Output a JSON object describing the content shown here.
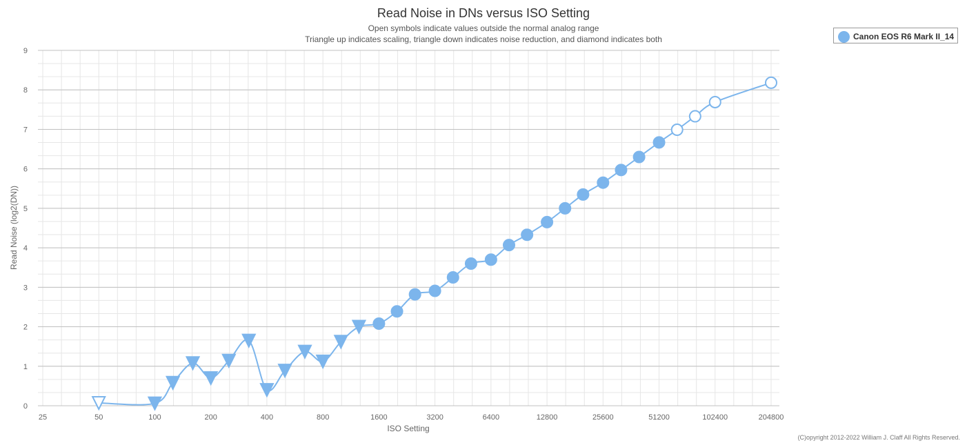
{
  "chart_data": {
    "type": "line",
    "title": "Read Noise in DNs versus ISO Setting",
    "subtitle_lines": [
      "Open symbols indicate values outside the normal analog range",
      "Triangle up indicates scaling, triangle down indicates noise reduction, and diamond indicates both"
    ],
    "xlabel": "ISO Setting",
    "ylabel": "Read Noise (log2(DN))",
    "x_scale": "log2",
    "x_ticks": [
      25,
      50,
      100,
      200,
      400,
      800,
      1600,
      3200,
      6400,
      12800,
      25600,
      51200,
      102400,
      204800
    ],
    "x_tick_labels": [
      "25",
      "50",
      "100",
      "200",
      "400",
      "800",
      "1600",
      "3200",
      "6400",
      "12800",
      "25600",
      "51200",
      "102400",
      "204800"
    ],
    "y_ticks": [
      0,
      1,
      2,
      3,
      4,
      5,
      6,
      7,
      8,
      9
    ],
    "xlim": [
      25,
      204800
    ],
    "ylim": [
      0,
      9
    ],
    "grid": true,
    "legend_position": "top-right",
    "series": [
      {
        "name": "Canon EOS R6 Mark II_14",
        "color": "#7cb5ec",
        "points": [
          {
            "x": 50,
            "y": 0.07,
            "marker": "triangle-down",
            "filled": false
          },
          {
            "x": 100,
            "y": 0.06,
            "marker": "triangle-down",
            "filled": true
          },
          {
            "x": 125,
            "y": 0.58,
            "marker": "triangle-down",
            "filled": true
          },
          {
            "x": 160,
            "y": 1.08,
            "marker": "triangle-down",
            "filled": true
          },
          {
            "x": 200,
            "y": 0.7,
            "marker": "triangle-down",
            "filled": true
          },
          {
            "x": 250,
            "y": 1.14,
            "marker": "triangle-down",
            "filled": true
          },
          {
            "x": 320,
            "y": 1.65,
            "marker": "triangle-down",
            "filled": true
          },
          {
            "x": 400,
            "y": 0.4,
            "marker": "triangle-down",
            "filled": true
          },
          {
            "x": 500,
            "y": 0.89,
            "marker": "triangle-down",
            "filled": true
          },
          {
            "x": 640,
            "y": 1.37,
            "marker": "triangle-down",
            "filled": true
          },
          {
            "x": 800,
            "y": 1.12,
            "marker": "triangle-down",
            "filled": true
          },
          {
            "x": 1000,
            "y": 1.62,
            "marker": "triangle-down",
            "filled": true
          },
          {
            "x": 1250,
            "y": 2.0,
            "marker": "triangle-down",
            "filled": true
          },
          {
            "x": 1600,
            "y": 2.08,
            "marker": "circle",
            "filled": true
          },
          {
            "x": 2000,
            "y": 2.39,
            "marker": "circle",
            "filled": true
          },
          {
            "x": 2500,
            "y": 2.82,
            "marker": "circle",
            "filled": true
          },
          {
            "x": 3200,
            "y": 2.91,
            "marker": "circle",
            "filled": true
          },
          {
            "x": 4000,
            "y": 3.25,
            "marker": "circle",
            "filled": true
          },
          {
            "x": 5000,
            "y": 3.6,
            "marker": "circle",
            "filled": true
          },
          {
            "x": 6400,
            "y": 3.7,
            "marker": "circle",
            "filled": true
          },
          {
            "x": 8000,
            "y": 4.07,
            "marker": "circle",
            "filled": true
          },
          {
            "x": 10000,
            "y": 4.33,
            "marker": "circle",
            "filled": true
          },
          {
            "x": 12800,
            "y": 4.65,
            "marker": "circle",
            "filled": true
          },
          {
            "x": 16000,
            "y": 5.0,
            "marker": "circle",
            "filled": true
          },
          {
            "x": 20000,
            "y": 5.35,
            "marker": "circle",
            "filled": true
          },
          {
            "x": 25600,
            "y": 5.65,
            "marker": "circle",
            "filled": true
          },
          {
            "x": 32000,
            "y": 5.97,
            "marker": "circle",
            "filled": true
          },
          {
            "x": 40000,
            "y": 6.3,
            "marker": "circle",
            "filled": true
          },
          {
            "x": 51200,
            "y": 6.67,
            "marker": "circle",
            "filled": true
          },
          {
            "x": 64000,
            "y": 6.99,
            "marker": "circle",
            "filled": false
          },
          {
            "x": 80000,
            "y": 7.33,
            "marker": "circle",
            "filled": false
          },
          {
            "x": 102400,
            "y": 7.69,
            "marker": "circle",
            "filled": false
          },
          {
            "x": 204800,
            "y": 8.18,
            "marker": "circle",
            "filled": false
          }
        ]
      }
    ]
  },
  "copyright": "(C)opyright 2012-2022 William J. Claff All Rights Reserved."
}
